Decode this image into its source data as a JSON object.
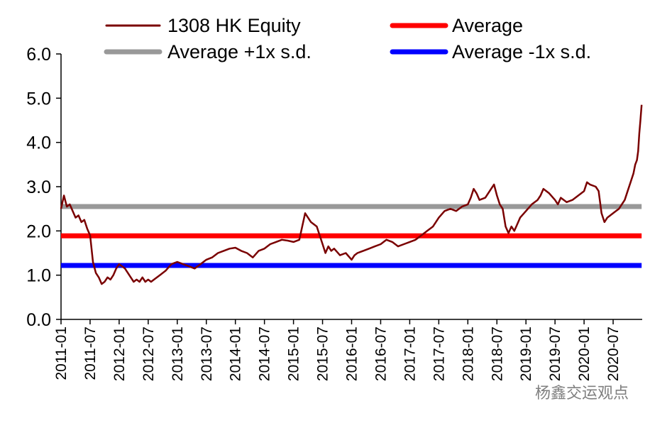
{
  "chart_data": {
    "type": "line",
    "title": "",
    "xlabel": "",
    "ylabel": "",
    "ylim": [
      0.0,
      6.0
    ],
    "yticks": [
      "0.0",
      "1.0",
      "2.0",
      "3.0",
      "4.0",
      "5.0",
      "6.0"
    ],
    "xticks": [
      "2011-01",
      "2011-07",
      "2012-01",
      "2012-07",
      "2013-01",
      "2013-07",
      "2014-01",
      "2014-07",
      "2015-01",
      "2015-07",
      "2016-01",
      "2016-07",
      "2017-01",
      "2017-07",
      "2018-01",
      "2018-07",
      "2019-01",
      "2019-07",
      "2020-01",
      "2020-07"
    ],
    "x_start": "2011-01",
    "x_end": "2020-12",
    "legend": [
      {
        "label": "1308 HK Equity",
        "color": "#7a0000"
      },
      {
        "label": "Average",
        "color": "#ff0000"
      },
      {
        "label": "Average +1x s.d.",
        "color": "#999999"
      },
      {
        "label": "Average -1x s.d.",
        "color": "#0000ff"
      }
    ],
    "series": [
      {
        "name": "1308 HK Equity",
        "color": "#7a0000",
        "x": [
          2011.0,
          2011.05,
          2011.1,
          2011.15,
          2011.2,
          2011.25,
          2011.3,
          2011.35,
          2011.4,
          2011.45,
          2011.5,
          2011.55,
          2011.6,
          2011.65,
          2011.7,
          2011.75,
          2011.8,
          2011.85,
          2011.9,
          2011.95,
          2012.0,
          2012.05,
          2012.1,
          2012.15,
          2012.2,
          2012.25,
          2012.3,
          2012.35,
          2012.4,
          2012.45,
          2012.5,
          2012.55,
          2012.6,
          2012.7,
          2012.8,
          2012.9,
          2013.0,
          2013.1,
          2013.2,
          2013.3,
          2013.4,
          2013.5,
          2013.6,
          2013.7,
          2013.8,
          2013.9,
          2014.0,
          2014.1,
          2014.2,
          2014.3,
          2014.4,
          2014.5,
          2014.6,
          2014.7,
          2014.8,
          2014.9,
          2015.0,
          2015.1,
          2015.2,
          2015.3,
          2015.4,
          2015.45,
          2015.5,
          2015.55,
          2015.6,
          2015.65,
          2015.7,
          2015.8,
          2015.9,
          2016.0,
          2016.05,
          2016.1,
          2016.2,
          2016.3,
          2016.4,
          2016.5,
          2016.6,
          2016.7,
          2016.8,
          2016.9,
          2017.0,
          2017.1,
          2017.2,
          2017.3,
          2017.4,
          2017.5,
          2017.6,
          2017.7,
          2017.8,
          2017.9,
          2018.0,
          2018.05,
          2018.1,
          2018.15,
          2018.2,
          2018.3,
          2018.4,
          2018.45,
          2018.5,
          2018.55,
          2018.6,
          2018.65,
          2018.7,
          2018.75,
          2018.8,
          2018.85,
          2018.9,
          2019.0,
          2019.1,
          2019.2,
          2019.25,
          2019.3,
          2019.4,
          2019.5,
          2019.55,
          2019.6,
          2019.7,
          2019.8,
          2019.9,
          2020.0,
          2020.05,
          2020.1,
          2020.2,
          2020.25,
          2020.3,
          2020.35,
          2020.4,
          2020.5,
          2020.55,
          2020.6,
          2020.65,
          2020.7,
          2020.75,
          2020.8,
          2020.85,
          2020.88,
          2020.91,
          2020.93,
          2020.95,
          2020.97,
          2020.99
        ],
        "values": [
          2.5,
          2.8,
          2.55,
          2.6,
          2.45,
          2.3,
          2.35,
          2.2,
          2.25,
          2.05,
          1.9,
          1.3,
          1.05,
          0.95,
          0.8,
          0.85,
          0.95,
          0.9,
          1.0,
          1.15,
          1.25,
          1.2,
          1.15,
          1.05,
          0.95,
          0.85,
          0.9,
          0.85,
          0.95,
          0.85,
          0.9,
          0.85,
          0.9,
          1.0,
          1.1,
          1.25,
          1.3,
          1.25,
          1.2,
          1.15,
          1.25,
          1.35,
          1.4,
          1.5,
          1.55,
          1.6,
          1.62,
          1.55,
          1.5,
          1.4,
          1.55,
          1.6,
          1.7,
          1.75,
          1.8,
          1.78,
          1.75,
          1.8,
          2.4,
          2.2,
          2.1,
          1.9,
          1.7,
          1.5,
          1.65,
          1.55,
          1.6,
          1.45,
          1.5,
          1.35,
          1.45,
          1.5,
          1.55,
          1.6,
          1.65,
          1.7,
          1.8,
          1.75,
          1.65,
          1.7,
          1.75,
          1.8,
          1.9,
          2.0,
          2.1,
          2.3,
          2.45,
          2.5,
          2.45,
          2.55,
          2.6,
          2.75,
          2.95,
          2.85,
          2.7,
          2.75,
          2.95,
          3.05,
          2.8,
          2.6,
          2.5,
          2.1,
          1.95,
          2.1,
          2.0,
          2.15,
          2.3,
          2.45,
          2.6,
          2.7,
          2.8,
          2.95,
          2.85,
          2.7,
          2.6,
          2.75,
          2.65,
          2.7,
          2.8,
          2.9,
          3.1,
          3.05,
          3.0,
          2.9,
          2.4,
          2.2,
          2.3,
          2.4,
          2.45,
          2.5,
          2.6,
          2.7,
          2.9,
          3.1,
          3.3,
          3.5,
          3.6,
          3.8,
          4.2,
          4.5,
          4.85
        ]
      },
      {
        "name": "Average",
        "color": "#ff0000",
        "x": [
          2011.0,
          2020.99
        ],
        "values": [
          1.89,
          1.89
        ]
      },
      {
        "name": "Average +1x s.d.",
        "color": "#999999",
        "x": [
          2011.0,
          2020.99
        ],
        "values": [
          2.55,
          2.55
        ]
      },
      {
        "name": "Average -1x s.d.",
        "color": "#0000ff",
        "x": [
          2011.0,
          2020.99
        ],
        "values": [
          1.22,
          1.22
        ]
      }
    ],
    "grid": false,
    "legend_position": "top"
  },
  "watermark": {
    "text": "杨鑫交运观点"
  }
}
